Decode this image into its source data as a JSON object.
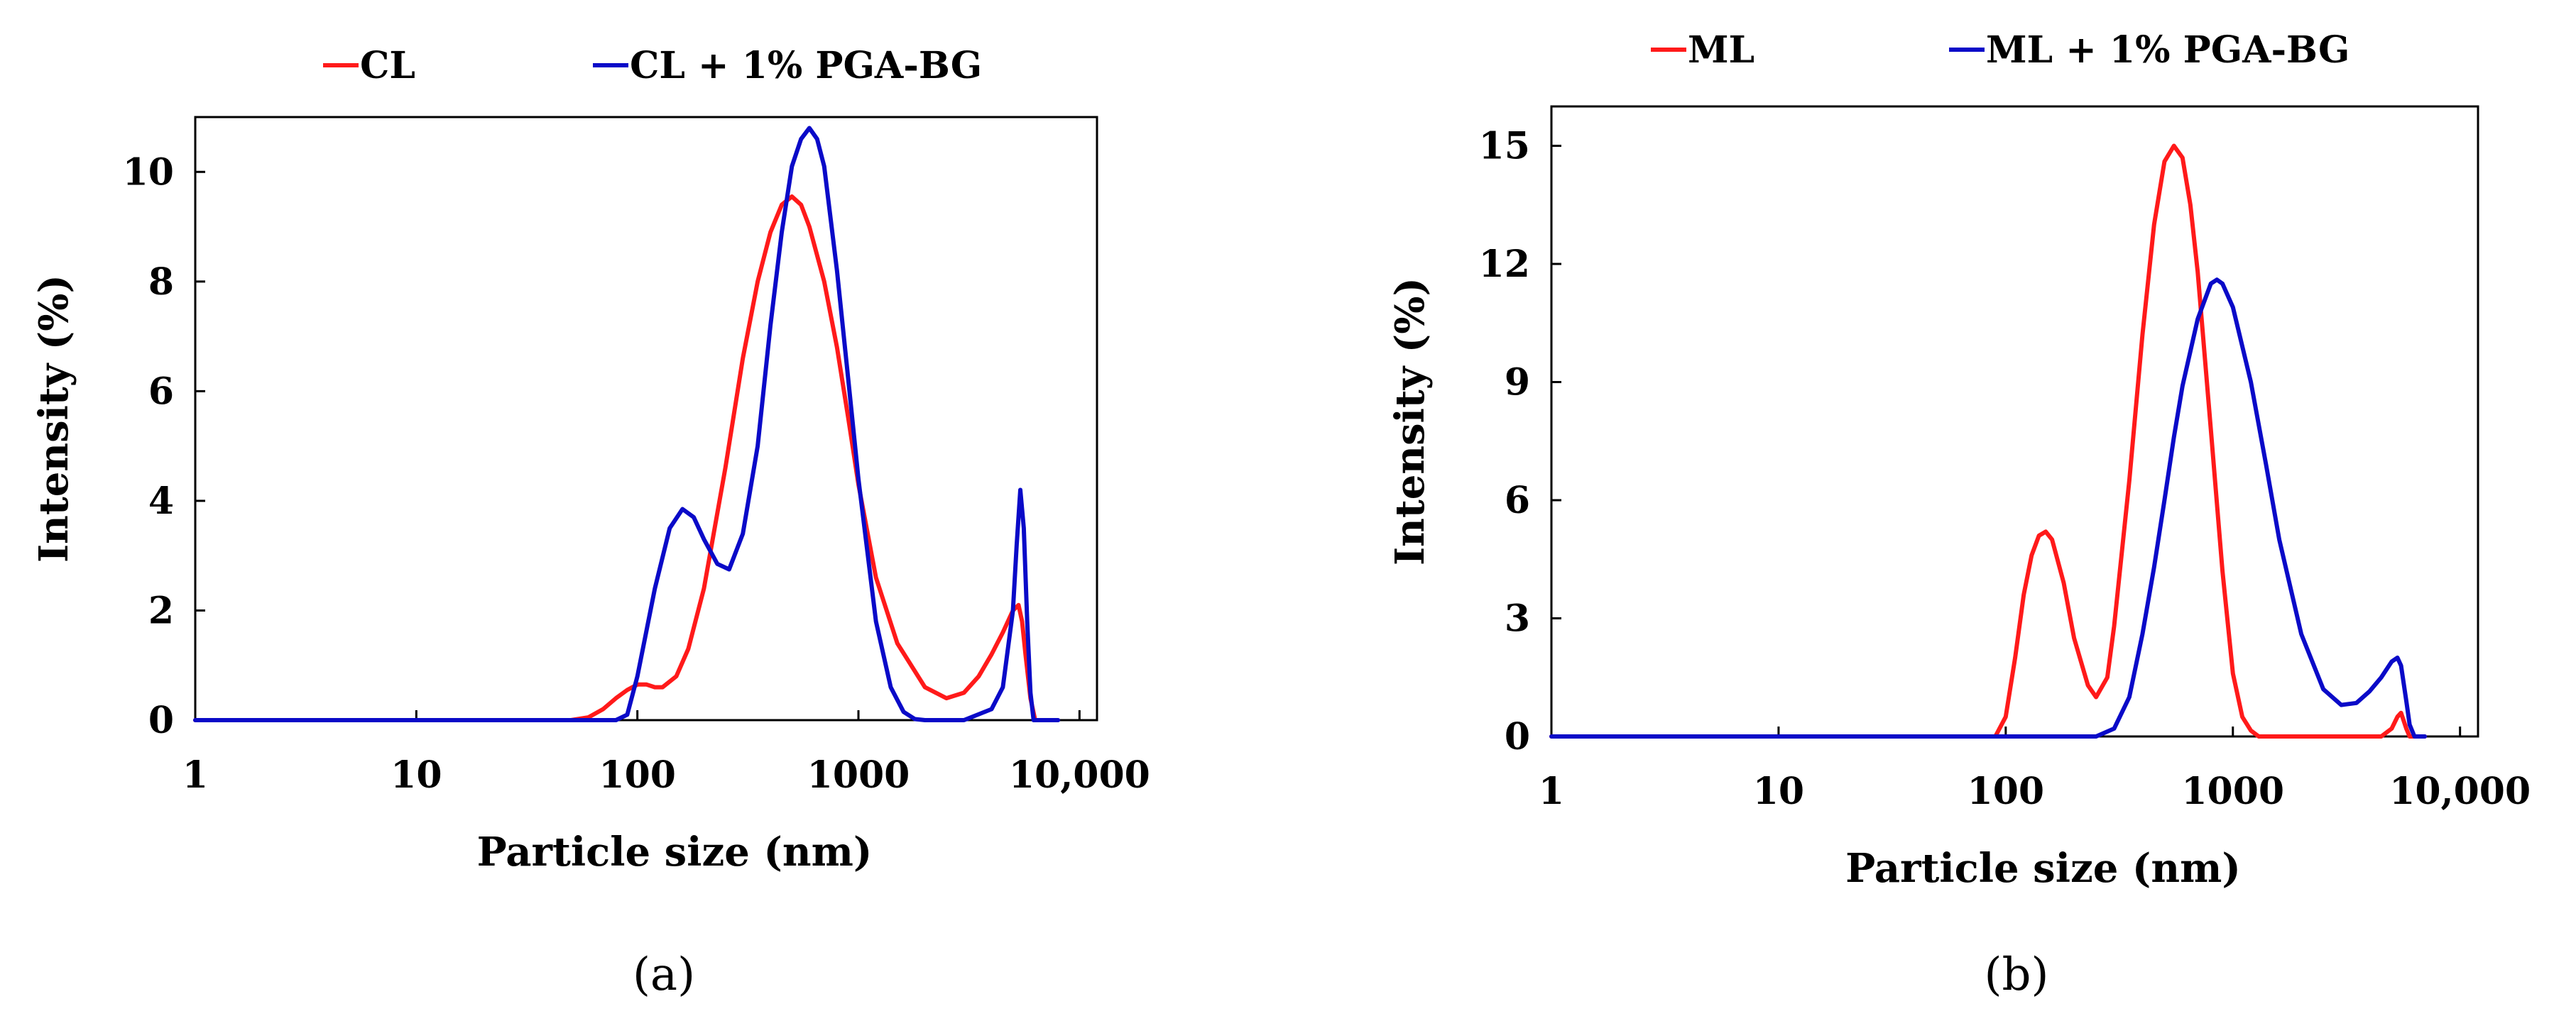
{
  "chart_data": [
    {
      "type": "line",
      "panel_label": "(a)",
      "xscale": "log",
      "xlabel": "Particle size (nm)",
      "ylabel": "Intensity (%)",
      "xlim": [
        1,
        12000
      ],
      "ylim": [
        0,
        11
      ],
      "xticks": [
        1,
        10,
        100,
        1000,
        10000
      ],
      "xtick_labels": [
        "1",
        "10",
        "100",
        "1000",
        "10,000"
      ],
      "yticks": [
        0,
        2,
        4,
        6,
        8,
        10
      ],
      "ytick_labels": [
        "0",
        "2",
        "4",
        "6",
        "8",
        "10"
      ],
      "legend_position": "top",
      "series": [
        {
          "name": "CL",
          "color": "#ff1a1a",
          "x": [
            1,
            10,
            50,
            60,
            70,
            80,
            90,
            100,
            110,
            120,
            130,
            150,
            170,
            200,
            250,
            300,
            350,
            400,
            450,
            500,
            550,
            600,
            700,
            800,
            900,
            1000,
            1200,
            1500,
            2000,
            2500,
            3000,
            3500,
            4000,
            4500,
            5000,
            5300,
            5500,
            5700,
            6000,
            6300
          ],
          "y": [
            0,
            0,
            0,
            0.05,
            0.2,
            0.4,
            0.55,
            0.65,
            0.65,
            0.6,
            0.6,
            0.8,
            1.3,
            2.4,
            4.6,
            6.6,
            8.0,
            8.9,
            9.4,
            9.55,
            9.4,
            9.0,
            8.0,
            6.8,
            5.5,
            4.3,
            2.6,
            1.4,
            0.6,
            0.4,
            0.5,
            0.8,
            1.2,
            1.6,
            2.0,
            2.1,
            1.8,
            1.2,
            0.4,
            0
          ]
        },
        {
          "name": "CL + 1% PGA-BG",
          "color": "#0a0ac8",
          "x": [
            1,
            10,
            70,
            80,
            90,
            100,
            120,
            140,
            160,
            180,
            200,
            230,
            260,
            300,
            350,
            400,
            450,
            500,
            550,
            600,
            650,
            700,
            800,
            900,
            1000,
            1200,
            1400,
            1600,
            1800,
            2000,
            3000,
            4000,
            4500,
            5000,
            5200,
            5400,
            5600,
            5800,
            6000,
            6200,
            7000,
            8000
          ],
          "y": [
            0,
            0,
            0,
            0,
            0.1,
            0.8,
            2.4,
            3.5,
            3.85,
            3.7,
            3.3,
            2.85,
            2.75,
            3.4,
            5.0,
            7.2,
            8.9,
            10.1,
            10.6,
            10.8,
            10.6,
            10.1,
            8.2,
            6.2,
            4.4,
            1.8,
            0.6,
            0.15,
            0.02,
            0,
            0,
            0.2,
            0.6,
            2.0,
            3.2,
            4.2,
            3.5,
            1.8,
            0.5,
            0,
            0,
            0
          ]
        }
      ]
    },
    {
      "type": "line",
      "panel_label": "(b)",
      "xscale": "log",
      "xlabel": "Particle size (nm)",
      "ylabel": "Intensity (%)",
      "xlim": [
        1,
        12000
      ],
      "ylim": [
        0,
        16
      ],
      "xticks": [
        1,
        10,
        100,
        1000,
        10000
      ],
      "xtick_labels": [
        "1",
        "10",
        "100",
        "1000",
        "10,000"
      ],
      "yticks": [
        0,
        3,
        6,
        9,
        12,
        15
      ],
      "ytick_labels": [
        "0",
        "3",
        "6",
        "9",
        "12",
        "15"
      ],
      "legend_position": "top",
      "series": [
        {
          "name": "ML",
          "color": "#ff1a1a",
          "x": [
            1,
            10,
            90,
            100,
            110,
            120,
            130,
            140,
            150,
            160,
            180,
            200,
            230,
            250,
            280,
            300,
            350,
            400,
            450,
            500,
            550,
            600,
            650,
            700,
            800,
            900,
            1000,
            1100,
            1200,
            1300,
            1500,
            3000,
            4500,
            5000,
            5300,
            5500,
            5800,
            6000,
            7000
          ],
          "y": [
            0,
            0,
            0,
            0.5,
            2.0,
            3.6,
            4.6,
            5.1,
            5.2,
            5.0,
            3.9,
            2.5,
            1.3,
            1.0,
            1.5,
            2.8,
            6.5,
            10.2,
            13.0,
            14.6,
            15.0,
            14.7,
            13.5,
            11.8,
            7.8,
            4.2,
            1.6,
            0.5,
            0.15,
            0,
            0,
            0,
            0,
            0.2,
            0.5,
            0.6,
            0.2,
            0,
            0
          ]
        },
        {
          "name": "ML + 1% PGA-BG",
          "color": "#0a0ac8",
          "x": [
            1,
            10,
            100,
            250,
            300,
            350,
            400,
            450,
            500,
            550,
            600,
            700,
            800,
            850,
            900,
            1000,
            1200,
            1400,
            1600,
            2000,
            2500,
            3000,
            3500,
            4000,
            4500,
            5000,
            5300,
            5500,
            5800,
            6000,
            6300,
            7000
          ],
          "y": [
            0,
            0,
            0,
            0,
            0.2,
            1.0,
            2.6,
            4.3,
            6.0,
            7.6,
            8.9,
            10.6,
            11.5,
            11.6,
            11.5,
            10.9,
            9.0,
            6.9,
            5.0,
            2.6,
            1.2,
            0.8,
            0.85,
            1.15,
            1.5,
            1.9,
            2.0,
            1.8,
            0.9,
            0.3,
            0,
            0
          ]
        }
      ]
    }
  ]
}
